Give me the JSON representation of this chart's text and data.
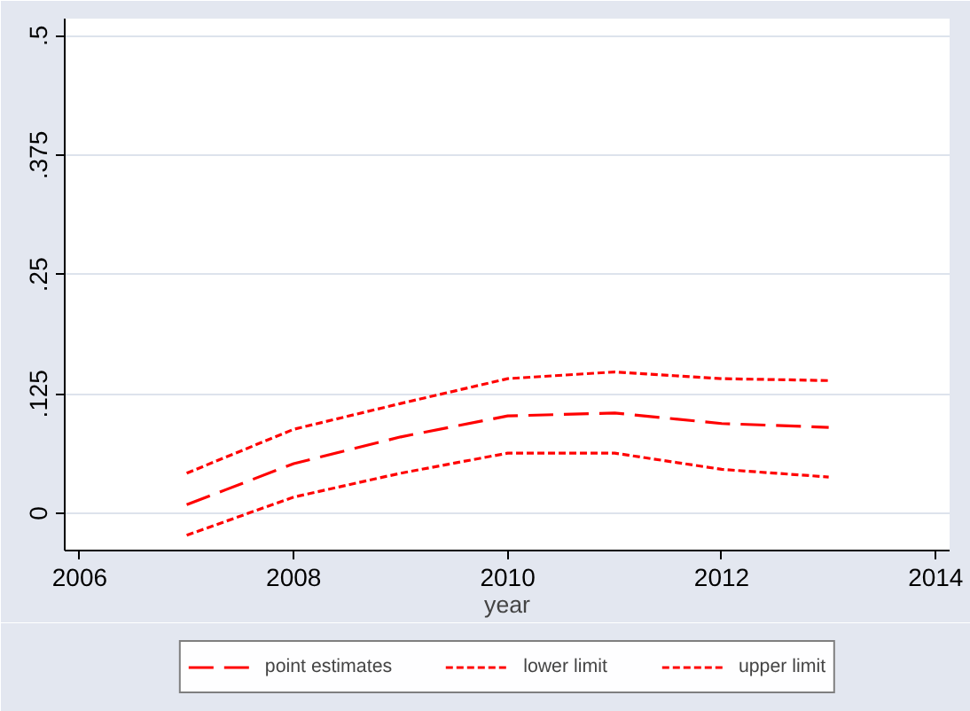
{
  "chart_data": {
    "type": "line",
    "xlabel": "year",
    "x": [
      2007,
      2008,
      2009,
      2010,
      2011,
      2012,
      2013
    ],
    "series": [
      {
        "name": "point estimates",
        "color": "#ff0000",
        "line_style": "dashed",
        "values": [
          0.009,
          0.052,
          0.08,
          0.102,
          0.105,
          0.094,
          0.09
        ]
      },
      {
        "name": "lower limit",
        "color": "#ff0000",
        "line_style": "dotted",
        "values": [
          -0.023,
          0.017,
          0.042,
          0.063,
          0.063,
          0.046,
          0.038
        ]
      },
      {
        "name": "upper limit",
        "color": "#ff0000",
        "line_style": "dotted",
        "values": [
          0.042,
          0.088,
          0.115,
          0.141,
          0.148,
          0.141,
          0.139
        ]
      }
    ],
    "xlim": [
      2005.86,
      2014.13
    ],
    "ylim": [
      -0.039,
      0.518
    ],
    "xticks": [
      2006,
      2008,
      2010,
      2012,
      2014
    ],
    "yticks": [
      0,
      {
        "value": 0.125,
        "label": ".125"
      },
      {
        "value": 0.25,
        "label": ".25"
      },
      {
        "value": 0.375,
        "label": ".375"
      },
      {
        "value": 0.5,
        "label": ".5"
      }
    ],
    "grid": "y",
    "legend": "bottom",
    "marker": "none"
  }
}
